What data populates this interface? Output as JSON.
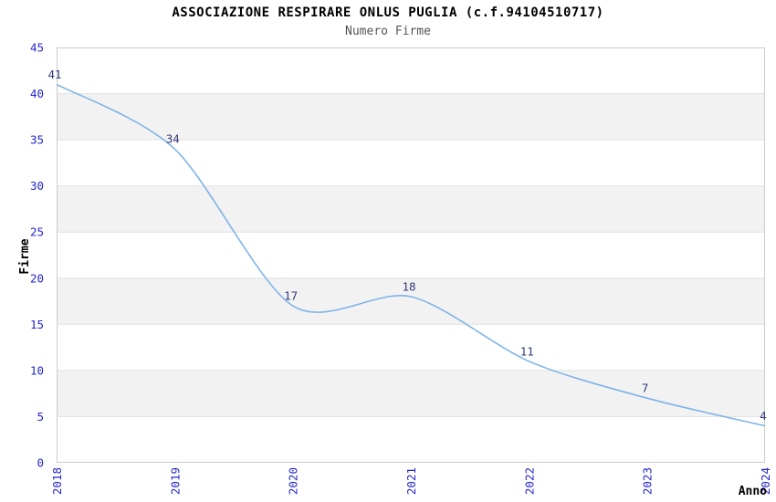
{
  "chart_data": {
    "type": "line",
    "title": "ASSOCIAZIONE RESPIRARE ONLUS PUGLIA (c.f.94104510717)",
    "subtitle": "Numero Firme",
    "xlabel": "Anno",
    "ylabel": "Firme",
    "categories": [
      "2018",
      "2019",
      "2020",
      "2021",
      "2022",
      "2023",
      "2024"
    ],
    "series": [
      {
        "name": "Numero Firme",
        "values": [
          41,
          34,
          17,
          18,
          11,
          7,
          4
        ]
      }
    ],
    "ylim": [
      0,
      45
    ],
    "ytick_step": 5,
    "yticks": [
      0,
      5,
      10,
      15,
      20,
      25,
      30,
      35,
      40,
      45
    ],
    "grid": true,
    "legend": "none",
    "colors": {
      "line": "#7fb3e8",
      "tick_label": "#2424cc",
      "data_label": "#333a7a",
      "band_fill": "#f2f2f2",
      "gridline": "#e0e0e0",
      "plot_border": "#cccccc",
      "title": "#000000",
      "subtitle": "#555555",
      "axis_title": "#000000",
      "background": "#ffffff"
    }
  }
}
